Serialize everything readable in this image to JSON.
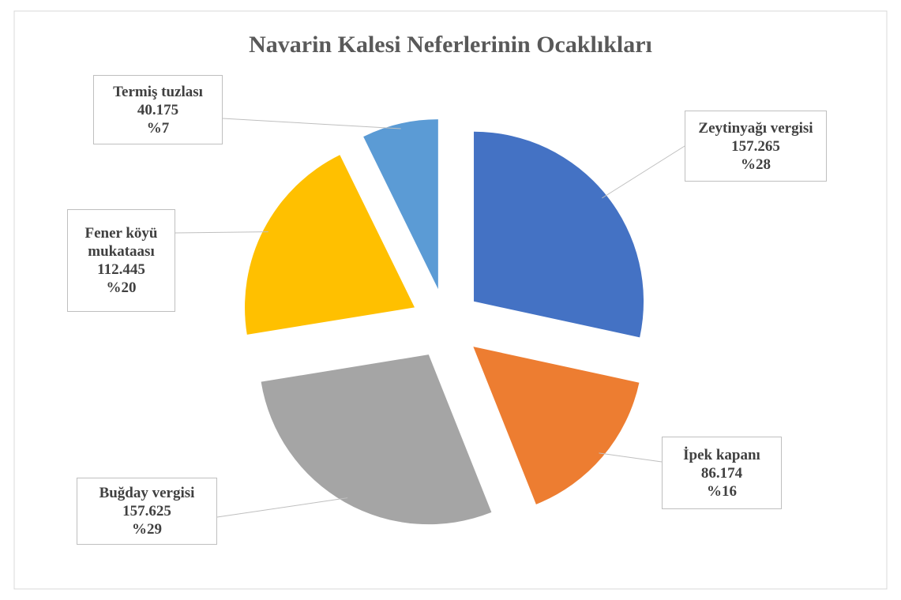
{
  "chart_data": {
    "type": "pie",
    "title": "Navarin Kalesi Neferlerinin Ocaklıkları",
    "categories": [
      "Zeytinyağı vergisi",
      "İpek kapanı",
      "Buğday vergisi",
      "Fener köyü mukataası",
      "Termiş tuzlası"
    ],
    "values": [
      157265,
      86174,
      157625,
      112445,
      40175
    ],
    "value_labels": [
      "157.265",
      "86.174",
      "157.625",
      "112.445",
      "40.175"
    ],
    "percent_labels": [
      "%28",
      "%16",
      "%29",
      "%20",
      "%7"
    ],
    "colors": [
      "#4472c4",
      "#ed7d31",
      "#a5a5a5",
      "#ffc000",
      "#5b9bd5"
    ],
    "exploded": true
  }
}
